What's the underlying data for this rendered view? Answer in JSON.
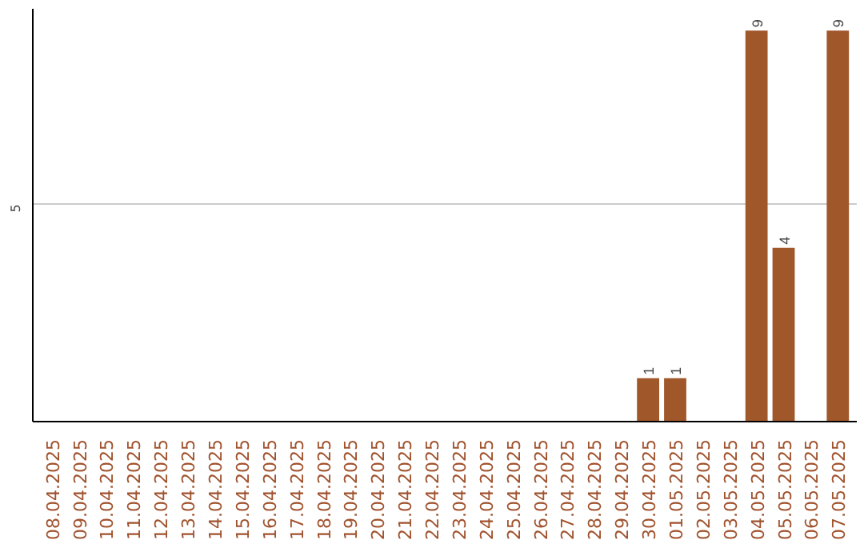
{
  "chart_data": {
    "type": "bar",
    "categories": [
      "08.04.2025",
      "09.04.2025",
      "10.04.2025",
      "11.04.2025",
      "12.04.2025",
      "13.04.2025",
      "14.04.2025",
      "15.04.2025",
      "16.04.2025",
      "17.04.2025",
      "18.04.2025",
      "19.04.2025",
      "20.04.2025",
      "21.04.2025",
      "22.04.2025",
      "23.04.2025",
      "24.04.2025",
      "25.04.2025",
      "26.04.2025",
      "27.04.2025",
      "28.04.2025",
      "29.04.2025",
      "30.04.2025",
      "01.05.2025",
      "02.05.2025",
      "03.05.2025",
      "04.05.2025",
      "05.05.2025",
      "06.05.2025",
      "07.05.2025"
    ],
    "values": [
      null,
      null,
      null,
      null,
      null,
      null,
      null,
      null,
      null,
      null,
      null,
      null,
      null,
      null,
      null,
      null,
      null,
      null,
      null,
      null,
      null,
      null,
      1,
      1,
      null,
      null,
      9,
      4,
      null,
      9
    ],
    "data_labels": true,
    "color": "#a0572a",
    "ylim": [
      0,
      9.5
    ],
    "yticks": [
      5
    ],
    "grid": "y"
  }
}
